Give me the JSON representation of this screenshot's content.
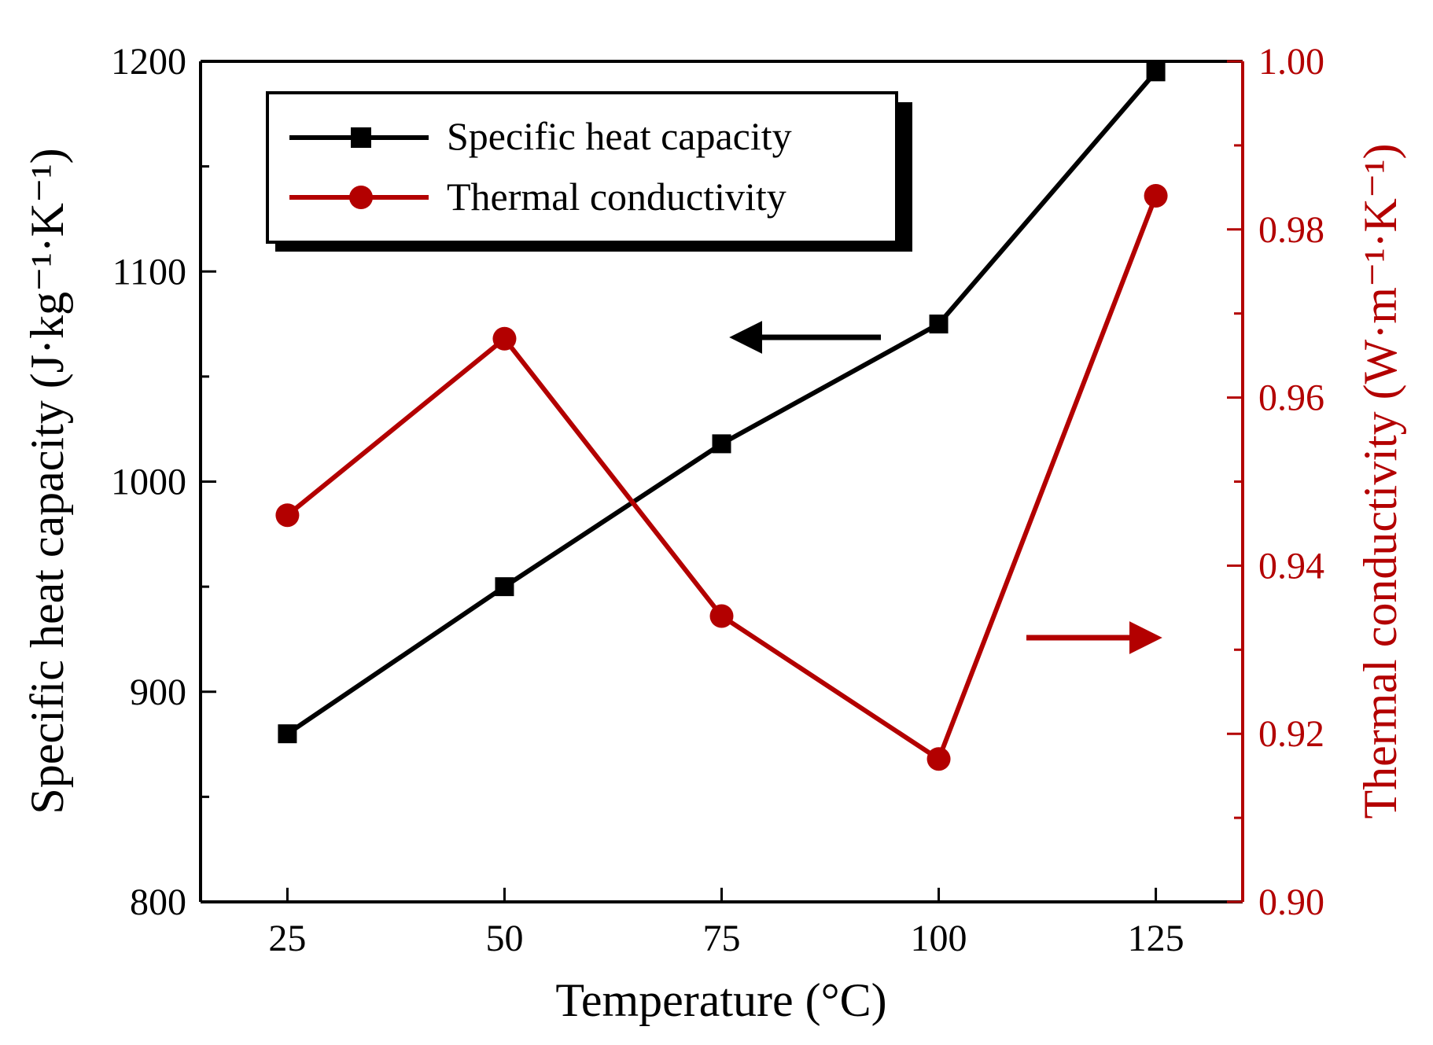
{
  "chart_data": {
    "type": "line",
    "x": [
      25,
      50,
      75,
      100,
      125
    ],
    "xlabel": "Temperature (°C)",
    "xlim": [
      15,
      135
    ],
    "xticks": [
      "25",
      "50",
      "75",
      "100",
      "125"
    ],
    "series": [
      {
        "name": "Specific heat capacity",
        "axis": "left",
        "color": "#000000",
        "marker": "square",
        "values": [
          880,
          950,
          1018,
          1075,
          1195
        ]
      },
      {
        "name": "Thermal conductivity",
        "axis": "right",
        "color": "#b30000",
        "marker": "circle",
        "values": [
          0.946,
          0.967,
          0.934,
          0.917,
          0.984
        ]
      }
    ],
    "y_left": {
      "label": "Specific heat capacity (J·kg⁻¹·K⁻¹)",
      "range": [
        800,
        1200
      ],
      "major_ticks": [
        "800",
        "900",
        "1000",
        "1100",
        "1200"
      ],
      "color": "#000000"
    },
    "y_right": {
      "label": "Thermal conductivity (W·m⁻¹·K⁻¹)",
      "range": [
        0.9,
        1.0
      ],
      "major_ticks": [
        "0.90",
        "0.92",
        "0.94",
        "0.96",
        "0.98",
        "1.00"
      ],
      "color": "#b30000"
    },
    "legend_position": "top-left",
    "annotations": [
      {
        "type": "arrow",
        "direction": "left",
        "series": "Specific heat capacity",
        "at_x": 90,
        "at_y_left": 1070
      },
      {
        "type": "arrow",
        "direction": "right",
        "series": "Thermal conductivity",
        "at_x": 115,
        "at_y_right": 0.93
      }
    ]
  }
}
